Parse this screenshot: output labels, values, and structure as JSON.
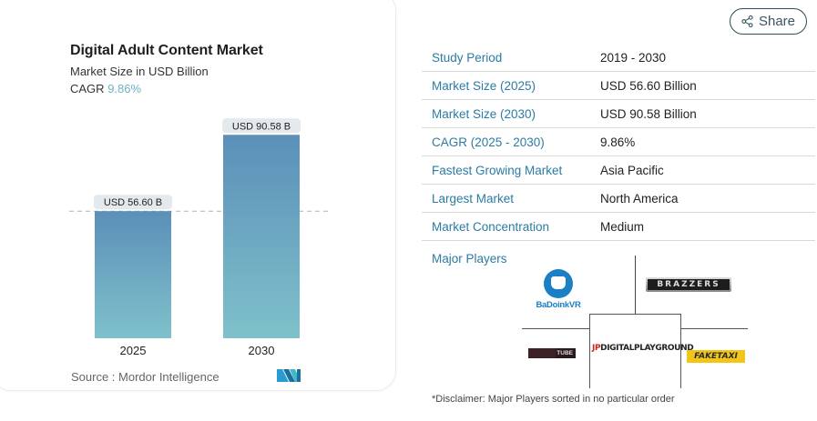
{
  "card": {
    "title": "Digital Adult Content Market",
    "subtitle": "Market Size in USD Billion",
    "cagr_label": "CAGR",
    "cagr_value": "9.86%",
    "source": "Source :  Mordor Intelligence",
    "logo": "mordor-intelligence-logo"
  },
  "chart_data": {
    "type": "bar",
    "title": "Digital Adult Content Market",
    "subtitle": "Market Size in USD Billion",
    "categories": [
      "2025",
      "2030"
    ],
    "values": [
      56.6,
      90.58
    ],
    "data_labels": [
      "USD 56.60 B",
      "USD 90.58 B"
    ],
    "unit": "USD Billion",
    "xlabel": "",
    "ylabel": "",
    "ylim": [
      0,
      100
    ],
    "grid": false,
    "reference_line": {
      "value": 56.6,
      "style": "dashed"
    },
    "colors": {
      "top": "#5b8fb8",
      "bottom": "#7fc1cb",
      "label_bg": "#e3e9ec"
    }
  },
  "share": {
    "label": "Share",
    "icon": "share-icon"
  },
  "table": {
    "rows": [
      {
        "label": "Study Period",
        "value": "2019 - 2030"
      },
      {
        "label": "Market Size (2025)",
        "value": "USD 56.60 Billion"
      },
      {
        "label": "Market Size (2030)",
        "value": "USD 90.58 Billion"
      },
      {
        "label": "CAGR (2025 - 2030)",
        "value": "9.86%"
      },
      {
        "label": "Fastest Growing Market",
        "value": "Asia Pacific"
      },
      {
        "label": "Largest Market",
        "value": "North America"
      },
      {
        "label": "Market Concentration",
        "value": "Medium"
      }
    ]
  },
  "major_players": {
    "label": "Major Players",
    "logos": [
      {
        "name": "BaDoinkVR",
        "text": "BaDoinkVR"
      },
      {
        "name": "Brazzers",
        "text": "BRAZZERS"
      },
      {
        "name": "Tube",
        "text": "TUBE"
      },
      {
        "name": "Digital Playground",
        "mark": "JP",
        "text": "DIGITALPLAYGROUND"
      },
      {
        "name": "Fake Taxi",
        "text": "FAKETAXI"
      }
    ],
    "disclaimer": "*Disclaimer: Major Players sorted in no particular order"
  },
  "colors": {
    "accent_label": "#2b7ba3",
    "cagr_value": "#6fb1c4"
  }
}
